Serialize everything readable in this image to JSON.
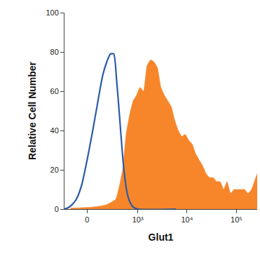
{
  "chart_data": {
    "type": "area",
    "x_label": "Glut1",
    "y_label": "Relative Cell Number",
    "log": "x",
    "grid": false,
    "xlim": [
      -240,
      262144
    ],
    "xticks": [
      0,
      {
        "value": 1000,
        "label": "10³"
      },
      {
        "value": 10000,
        "label": "10⁴"
      },
      {
        "value": 100000,
        "label": "10⁵"
      }
    ],
    "ylim": [
      0,
      100
    ],
    "yticks": [
      0,
      20,
      40,
      60,
      80,
      100
    ],
    "series": [
      {
        "type": "line",
        "color": "#2b5ba8",
        "x": [
          -240,
          -200,
          -150,
          -100,
          -50,
          0,
          50,
          100,
          150,
          200,
          250,
          300,
          350,
          400,
          500,
          600,
          700,
          800,
          1000,
          6000
        ],
        "values": [
          0,
          0.5,
          2,
          5,
          12,
          25,
          40,
          55,
          68,
          75,
          79,
          79,
          66,
          50,
          22,
          8,
          3,
          1,
          0,
          0
        ]
      },
      {
        "type": "area",
        "color": "#f7862a",
        "x": [
          -163,
          37,
          180,
          334,
          477,
          567,
          674,
          796,
          940,
          1110,
          1307,
          1539,
          1815,
          2134,
          2512,
          2955,
          3475,
          4093,
          4813,
          5662,
          6650,
          7828,
          9196,
          10830,
          12730,
          14970,
          17610,
          20710,
          24360,
          28650,
          33700,
          39630,
          46630,
          54830,
          64500,
          75920,
          89300,
          105000,
          123500,
          145300,
          171000,
          201200,
          236700,
          262144
        ],
        "values": [
          0.5,
          1,
          2,
          5,
          20,
          38,
          48,
          55,
          58,
          62,
          60,
          73,
          76,
          75,
          72,
          62,
          58,
          55,
          52,
          45,
          40,
          37,
          38,
          35,
          33,
          28,
          25,
          22,
          18,
          16,
          16,
          14,
          14,
          10,
          14,
          8,
          10,
          10,
          10,
          10,
          8,
          10,
          15,
          18
        ]
      }
    ]
  }
}
